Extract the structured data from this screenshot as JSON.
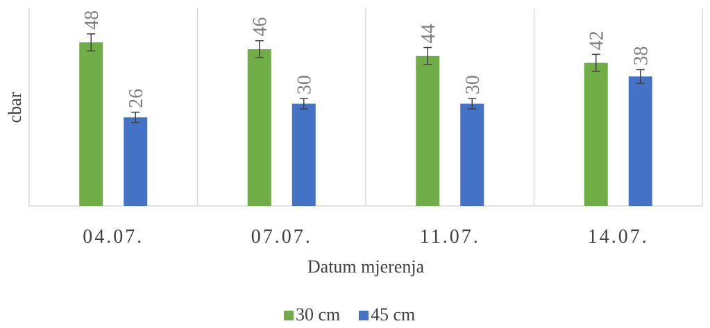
{
  "chart_data": {
    "type": "bar",
    "title": "",
    "xlabel": "Datum mjerenja",
    "ylabel": "cbar",
    "categories": [
      "04.07.",
      "07.07.",
      "11.07.",
      "14.07."
    ],
    "series": [
      {
        "name": "30 cm",
        "color": "#70ad47",
        "values": [
          48,
          46,
          44,
          42
        ],
        "error": [
          2.5,
          2.5,
          2.5,
          2.5
        ]
      },
      {
        "name": "45 cm",
        "color": "#4472c4",
        "values": [
          26,
          30,
          30,
          38
        ],
        "error": [
          1.5,
          1.5,
          1.5,
          2
        ]
      }
    ],
    "ylim": [
      0,
      58
    ],
    "grid": false,
    "category_separators": true,
    "legend": "bottom"
  }
}
